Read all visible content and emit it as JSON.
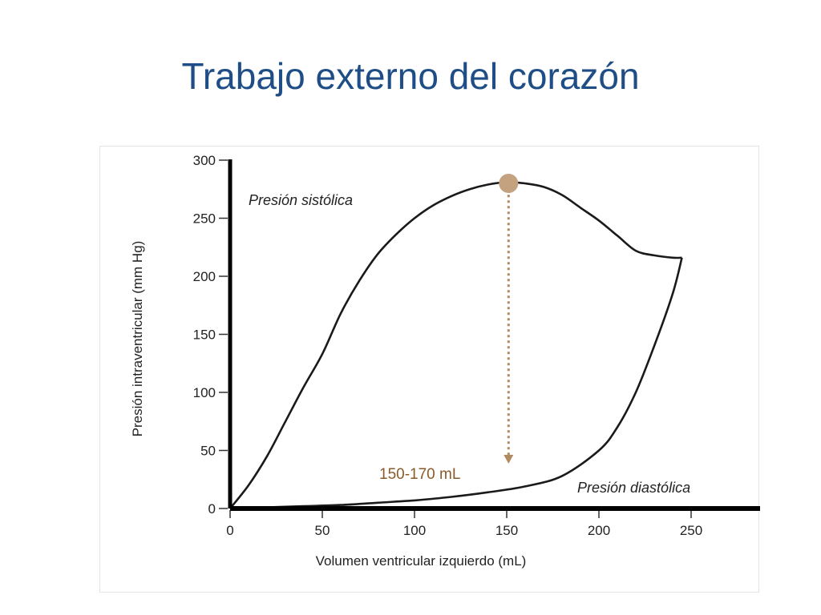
{
  "slide": {
    "title": "Trabajo externo del corazón"
  },
  "chart_data": {
    "type": "line",
    "xlabel": "Volumen ventricular izquierdo (mL)",
    "ylabel": "Presión intraventricular (mm Hg)",
    "xlim": [
      0,
      280
    ],
    "ylim": [
      0,
      300
    ],
    "x_ticks": [
      0,
      50,
      100,
      150,
      200,
      250
    ],
    "y_ticks": [
      0,
      50,
      100,
      150,
      200,
      250,
      300
    ],
    "grid": false,
    "series": [
      {
        "name": "Presión sistólica",
        "x": [
          0,
          10,
          20,
          30,
          40,
          50,
          60,
          70,
          80,
          90,
          100,
          110,
          120,
          130,
          140,
          150,
          160,
          170,
          180,
          190,
          200,
          210,
          220,
          230,
          240,
          245
        ],
        "y": [
          0,
          20,
          45,
          75,
          105,
          133,
          168,
          196,
          219,
          236,
          250,
          261,
          269,
          275,
          279,
          281,
          280,
          277,
          270,
          259,
          248,
          235,
          222,
          218,
          216,
          216
        ]
      },
      {
        "name": "Presión diastólica",
        "x": [
          0,
          20,
          40,
          60,
          80,
          100,
          120,
          140,
          160,
          180,
          200,
          210,
          220,
          230,
          240,
          245
        ],
        "y": [
          0,
          1,
          2,
          3,
          5,
          7,
          10,
          14,
          19,
          28,
          50,
          70,
          100,
          140,
          185,
          216
        ]
      }
    ],
    "markers": [
      {
        "x": 151,
        "y": 280,
        "color": "#c4a27f"
      }
    ],
    "annotations": [
      {
        "text": "150-170 mL",
        "x": 149,
        "y": 28,
        "color": "#8b5a2b"
      }
    ],
    "arrow": {
      "x": 151,
      "y_from": 275,
      "y_to": 40,
      "color": "#b08a60",
      "style": "dotted"
    }
  }
}
